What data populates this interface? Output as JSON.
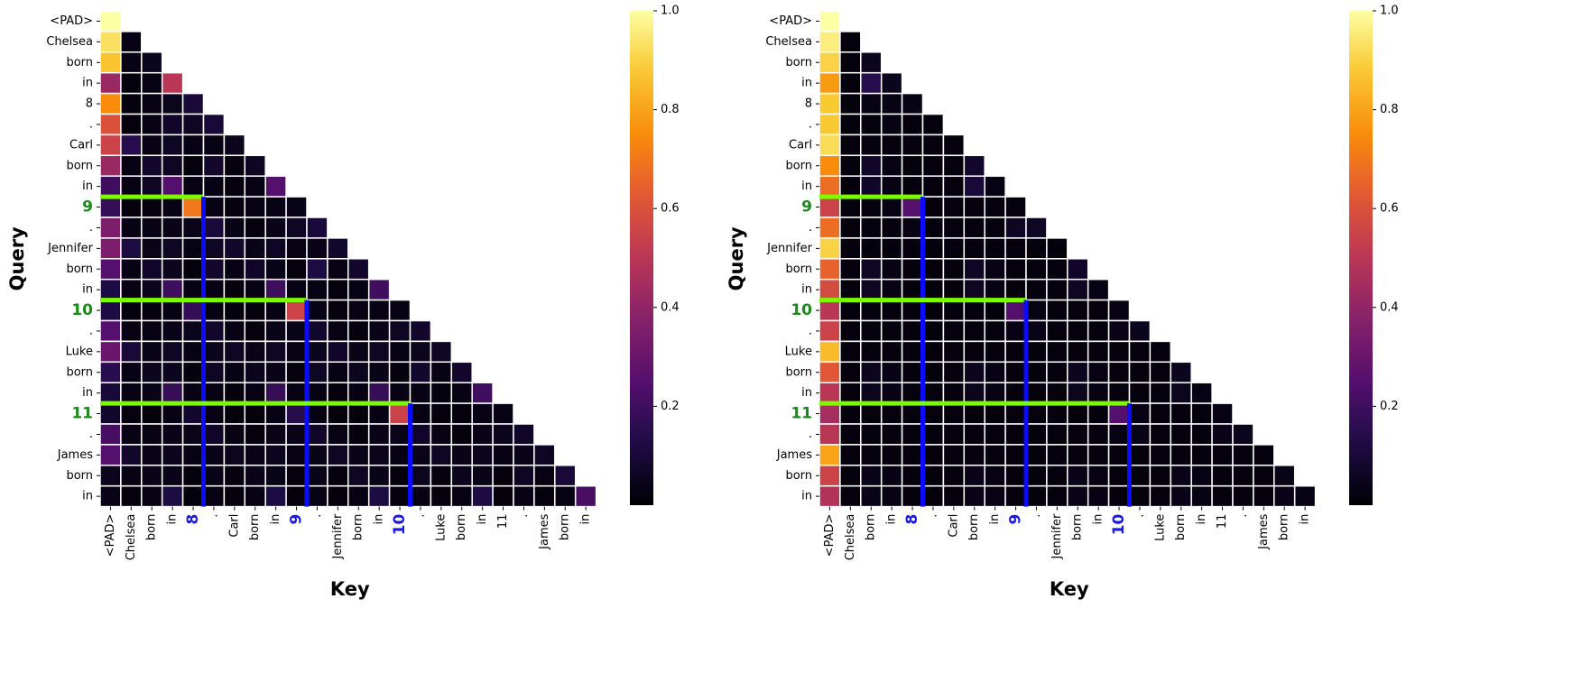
{
  "chart_data": [
    {
      "type": "heatmap",
      "title": "",
      "xlabel": "Key",
      "ylabel": "Query",
      "tokens": [
        "<PAD>",
        "Chelsea",
        "born",
        "in",
        "8",
        ".",
        "Carl",
        "born",
        "in",
        "9",
        ".",
        "Jennifer",
        "born",
        "in",
        "10",
        ".",
        "Luke",
        "born",
        "in",
        "11",
        ".",
        "James",
        "born",
        "in"
      ],
      "highlight_query_indices": [
        9,
        14,
        19
      ],
      "highlight_key_indices": [
        4,
        9,
        14
      ],
      "highlight_query_color": "#1a8a1a",
      "highlight_key_color": "#1818e8",
      "line_row_color": "#7cfc00",
      "line_col_color": "#0b0bff",
      "colormap": "inferno",
      "colorbar": {
        "min": 0,
        "max": 1,
        "ticks": [
          0.2,
          0.4,
          0.6,
          0.8,
          1.0
        ],
        "tick_labels": [
          "0.2",
          "0.4",
          "0.6",
          "0.8",
          "1.0"
        ]
      },
      "mask": "upper-triangle",
      "matrix": [
        [
          1.0
        ],
        [
          0.93,
          0.03
        ],
        [
          0.87,
          0.03,
          0.05
        ],
        [
          0.42,
          0.02,
          0.03,
          0.5
        ],
        [
          0.75,
          0.02,
          0.03,
          0.05,
          0.1
        ],
        [
          0.6,
          0.02,
          0.03,
          0.07,
          0.06,
          0.1
        ],
        [
          0.55,
          0.15,
          0.03,
          0.06,
          0.03,
          0.03,
          0.05
        ],
        [
          0.42,
          0.03,
          0.08,
          0.06,
          0.02,
          0.08,
          0.02,
          0.06
        ],
        [
          0.2,
          0.03,
          0.06,
          0.25,
          0.03,
          0.03,
          0.02,
          0.03,
          0.25
        ],
        [
          0.18,
          0.02,
          0.02,
          0.03,
          0.7,
          0.03,
          0.02,
          0.03,
          0.03,
          0.04
        ],
        [
          0.35,
          0.03,
          0.03,
          0.04,
          0.04,
          0.1,
          0.03,
          0.02,
          0.04,
          0.06,
          0.1
        ],
        [
          0.35,
          0.12,
          0.04,
          0.06,
          0.03,
          0.06,
          0.08,
          0.04,
          0.06,
          0.03,
          0.04,
          0.08
        ],
        [
          0.25,
          0.03,
          0.07,
          0.05,
          0.02,
          0.08,
          0.03,
          0.07,
          0.04,
          0.02,
          0.12,
          0.03,
          0.08
        ],
        [
          0.12,
          0.03,
          0.05,
          0.2,
          0.03,
          0.03,
          0.02,
          0.03,
          0.2,
          0.03,
          0.03,
          0.02,
          0.03,
          0.2
        ],
        [
          0.12,
          0.02,
          0.02,
          0.03,
          0.18,
          0.03,
          0.02,
          0.02,
          0.03,
          0.55,
          0.03,
          0.02,
          0.03,
          0.03,
          0.03
        ],
        [
          0.25,
          0.03,
          0.03,
          0.04,
          0.05,
          0.08,
          0.03,
          0.02,
          0.04,
          0.04,
          0.08,
          0.03,
          0.02,
          0.04,
          0.06,
          0.08
        ],
        [
          0.3,
          0.1,
          0.04,
          0.06,
          0.03,
          0.05,
          0.06,
          0.04,
          0.06,
          0.03,
          0.05,
          0.07,
          0.04,
          0.06,
          0.03,
          0.05,
          0.06
        ],
        [
          0.15,
          0.03,
          0.05,
          0.05,
          0.02,
          0.06,
          0.03,
          0.05,
          0.04,
          0.02,
          0.06,
          0.03,
          0.05,
          0.04,
          0.02,
          0.08,
          0.03,
          0.08
        ],
        [
          0.1,
          0.03,
          0.04,
          0.18,
          0.03,
          0.03,
          0.02,
          0.03,
          0.18,
          0.03,
          0.03,
          0.02,
          0.03,
          0.18,
          0.03,
          0.03,
          0.02,
          0.03,
          0.2
        ],
        [
          0.08,
          0.02,
          0.02,
          0.03,
          0.08,
          0.03,
          0.02,
          0.02,
          0.03,
          0.15,
          0.03,
          0.02,
          0.02,
          0.03,
          0.55,
          0.03,
          0.02,
          0.02,
          0.03,
          0.03
        ],
        [
          0.22,
          0.03,
          0.03,
          0.04,
          0.04,
          0.07,
          0.03,
          0.02,
          0.04,
          0.04,
          0.07,
          0.03,
          0.02,
          0.04,
          0.04,
          0.07,
          0.03,
          0.02,
          0.04,
          0.05,
          0.07
        ],
        [
          0.25,
          0.08,
          0.04,
          0.05,
          0.03,
          0.04,
          0.05,
          0.04,
          0.05,
          0.03,
          0.04,
          0.06,
          0.04,
          0.05,
          0.03,
          0.04,
          0.06,
          0.04,
          0.05,
          0.03,
          0.04,
          0.06
        ],
        [
          0.05,
          0.03,
          0.04,
          0.04,
          0.02,
          0.04,
          0.02,
          0.04,
          0.04,
          0.02,
          0.04,
          0.02,
          0.06,
          0.04,
          0.02,
          0.05,
          0.02,
          0.05,
          0.04,
          0.02,
          0.06,
          0.03,
          0.1
        ],
        [
          0.04,
          0.02,
          0.03,
          0.12,
          0.02,
          0.03,
          0.02,
          0.03,
          0.12,
          0.02,
          0.03,
          0.02,
          0.03,
          0.12,
          0.02,
          0.03,
          0.02,
          0.03,
          0.12,
          0.02,
          0.03,
          0.02,
          0.03,
          0.22
        ]
      ]
    },
    {
      "type": "heatmap",
      "title": "",
      "xlabel": "Key",
      "ylabel": "Query",
      "tokens": [
        "<PAD>",
        "Chelsea",
        "born",
        "in",
        "8",
        ".",
        "Carl",
        "born",
        "in",
        "9",
        ".",
        "Jennifer",
        "born",
        "in",
        "10",
        ".",
        "Luke",
        "born",
        "in",
        "11",
        ".",
        "James",
        "born",
        "in"
      ],
      "highlight_query_indices": [
        9,
        14,
        19
      ],
      "highlight_key_indices": [
        4,
        9,
        14
      ],
      "highlight_query_color": "#1a8a1a",
      "highlight_key_color": "#1818e8",
      "line_row_color": "#7cfc00",
      "line_col_color": "#0b0bff",
      "colormap": "inferno",
      "colorbar": {
        "min": 0,
        "max": 1,
        "ticks": [
          0.2,
          0.4,
          0.6,
          0.8,
          1.0
        ],
        "tick_labels": [
          "0.2",
          "0.4",
          "0.6",
          "0.8",
          "1.0"
        ]
      },
      "mask": "upper-triangle",
      "matrix": [
        [
          1.0
        ],
        [
          0.96,
          0.02
        ],
        [
          0.9,
          0.02,
          0.05
        ],
        [
          0.78,
          0.02,
          0.15,
          0.05
        ],
        [
          0.88,
          0.02,
          0.03,
          0.03,
          0.03
        ],
        [
          0.88,
          0.02,
          0.02,
          0.03,
          0.02,
          0.02
        ],
        [
          0.92,
          0.02,
          0.02,
          0.02,
          0.02,
          0.02,
          0.02
        ],
        [
          0.75,
          0.02,
          0.07,
          0.03,
          0.02,
          0.02,
          0.02,
          0.08
        ],
        [
          0.68,
          0.02,
          0.07,
          0.03,
          0.02,
          0.02,
          0.02,
          0.1,
          0.03
        ],
        [
          0.55,
          0.02,
          0.02,
          0.03,
          0.25,
          0.02,
          0.02,
          0.02,
          0.02,
          0.02
        ],
        [
          0.68,
          0.02,
          0.02,
          0.02,
          0.03,
          0.02,
          0.02,
          0.02,
          0.02,
          0.06,
          0.06
        ],
        [
          0.9,
          0.02,
          0.02,
          0.02,
          0.02,
          0.02,
          0.02,
          0.02,
          0.02,
          0.02,
          0.02,
          0.02
        ],
        [
          0.65,
          0.02,
          0.06,
          0.03,
          0.02,
          0.02,
          0.02,
          0.06,
          0.03,
          0.02,
          0.02,
          0.02,
          0.07
        ],
        [
          0.58,
          0.02,
          0.06,
          0.03,
          0.02,
          0.02,
          0.02,
          0.06,
          0.03,
          0.02,
          0.02,
          0.02,
          0.06,
          0.03
        ],
        [
          0.5,
          0.02,
          0.02,
          0.02,
          0.02,
          0.02,
          0.02,
          0.02,
          0.02,
          0.25,
          0.03,
          0.02,
          0.02,
          0.02,
          0.03
        ],
        [
          0.55,
          0.02,
          0.02,
          0.02,
          0.02,
          0.02,
          0.02,
          0.02,
          0.02,
          0.03,
          0.04,
          0.02,
          0.02,
          0.02,
          0.04,
          0.05
        ],
        [
          0.85,
          0.02,
          0.02,
          0.02,
          0.02,
          0.02,
          0.02,
          0.02,
          0.02,
          0.02,
          0.02,
          0.02,
          0.02,
          0.02,
          0.02,
          0.02,
          0.02
        ],
        [
          0.62,
          0.02,
          0.05,
          0.03,
          0.02,
          0.02,
          0.02,
          0.05,
          0.03,
          0.02,
          0.02,
          0.02,
          0.05,
          0.03,
          0.02,
          0.02,
          0.02,
          0.05
        ],
        [
          0.5,
          0.02,
          0.05,
          0.03,
          0.02,
          0.02,
          0.02,
          0.05,
          0.03,
          0.02,
          0.02,
          0.02,
          0.05,
          0.03,
          0.02,
          0.02,
          0.02,
          0.05,
          0.03
        ],
        [
          0.45,
          0.02,
          0.02,
          0.02,
          0.02,
          0.02,
          0.02,
          0.02,
          0.02,
          0.02,
          0.02,
          0.02,
          0.02,
          0.02,
          0.25,
          0.03,
          0.02,
          0.02,
          0.02,
          0.03
        ],
        [
          0.5,
          0.02,
          0.02,
          0.02,
          0.02,
          0.02,
          0.02,
          0.02,
          0.02,
          0.02,
          0.02,
          0.02,
          0.02,
          0.02,
          0.03,
          0.04,
          0.02,
          0.02,
          0.02,
          0.04,
          0.05
        ],
        [
          0.8,
          0.02,
          0.02,
          0.02,
          0.02,
          0.02,
          0.02,
          0.02,
          0.02,
          0.02,
          0.02,
          0.02,
          0.02,
          0.02,
          0.02,
          0.02,
          0.02,
          0.02,
          0.02,
          0.02,
          0.02,
          0.02
        ],
        [
          0.55,
          0.02,
          0.04,
          0.03,
          0.02,
          0.02,
          0.02,
          0.04,
          0.03,
          0.02,
          0.02,
          0.02,
          0.04,
          0.03,
          0.02,
          0.02,
          0.02,
          0.04,
          0.03,
          0.02,
          0.02,
          0.02,
          0.04
        ],
        [
          0.48,
          0.02,
          0.04,
          0.03,
          0.02,
          0.02,
          0.02,
          0.04,
          0.03,
          0.02,
          0.02,
          0.02,
          0.04,
          0.03,
          0.02,
          0.02,
          0.02,
          0.04,
          0.03,
          0.02,
          0.02,
          0.02,
          0.04,
          0.03
        ]
      ]
    }
  ]
}
